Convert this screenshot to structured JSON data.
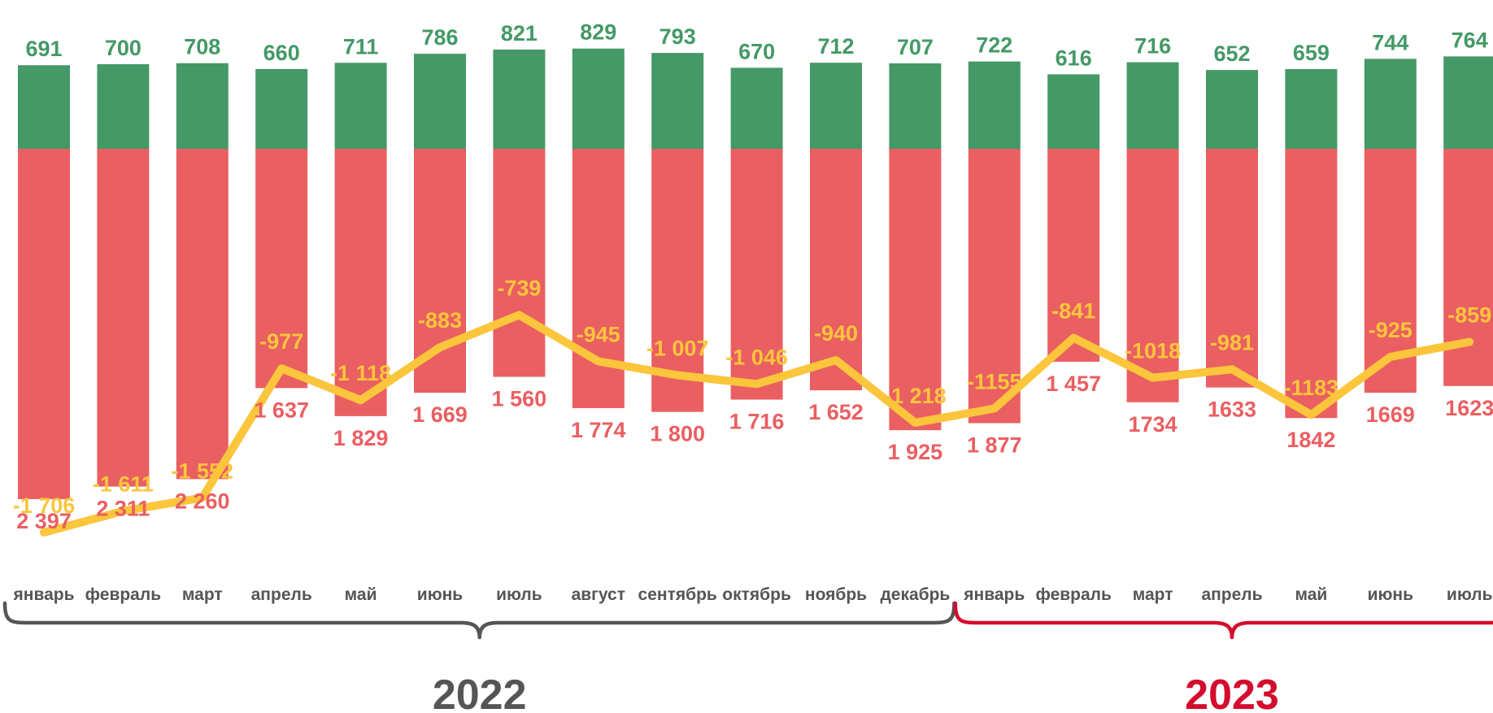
{
  "chart_data": {
    "type": "bar",
    "categories": [
      "январь",
      "февраль",
      "март",
      "апрель",
      "май",
      "июнь",
      "июль",
      "август",
      "сентябрь",
      "октябрь",
      "ноябрь",
      "декабрь",
      "январь",
      "февраль",
      "март",
      "апрель",
      "май",
      "июнь",
      "июль"
    ],
    "series": [
      {
        "values": [
          691,
          700,
          708,
          660,
          711,
          786,
          821,
          829,
          793,
          670,
          712,
          707,
          722,
          616,
          716,
          652,
          659,
          744,
          764
        ],
        "labels": [
          "691",
          "700",
          "708",
          "660",
          "711",
          "786",
          "821",
          "829",
          "793",
          "670",
          "712",
          "707",
          "722",
          "616",
          "716",
          "652",
          "659",
          "744",
          "764"
        ],
        "color": "#449966"
      },
      {
        "values": [
          2397,
          2311,
          2260,
          1637,
          1829,
          1669,
          1560,
          1774,
          1800,
          1716,
          1652,
          1925,
          1877,
          1457,
          1734,
          1633,
          1842,
          1669,
          1623
        ],
        "labels": [
          "2 397",
          "2 311",
          "2 260",
          "1 637",
          "1 829",
          "1 669",
          "1 560",
          "1 774",
          "1 800",
          "1 716",
          "1 652",
          "1 925",
          "1 877",
          "1 457",
          "1734",
          "1633",
          "1842",
          "1669",
          "1623"
        ],
        "color": "#EA5F61"
      },
      {
        "values": [
          -1706,
          -1611,
          -1552,
          -977,
          -1118,
          -883,
          -739,
          -945,
          -1007,
          -1046,
          -940,
          -1218,
          -1155,
          -841,
          -1018,
          -981,
          -1183,
          -925,
          -859
        ],
        "labels": [
          "-1 706",
          "-1 611",
          "-1 552",
          "-977",
          "-1 118",
          "-883",
          "-739",
          "-945",
          "-1 007",
          "-1 046",
          "-940",
          "-1 218",
          "-1155",
          "-841",
          "-1018",
          "-981",
          "-1183",
          "-925",
          "-859"
        ],
        "color": "#FBC53C"
      }
    ],
    "groups": [
      {
        "label": "2022",
        "from": 0,
        "to": 11,
        "color": "#555555"
      },
      {
        "label": "2023",
        "from": 12,
        "to": 18,
        "color": "#D40D2D"
      }
    ]
  }
}
